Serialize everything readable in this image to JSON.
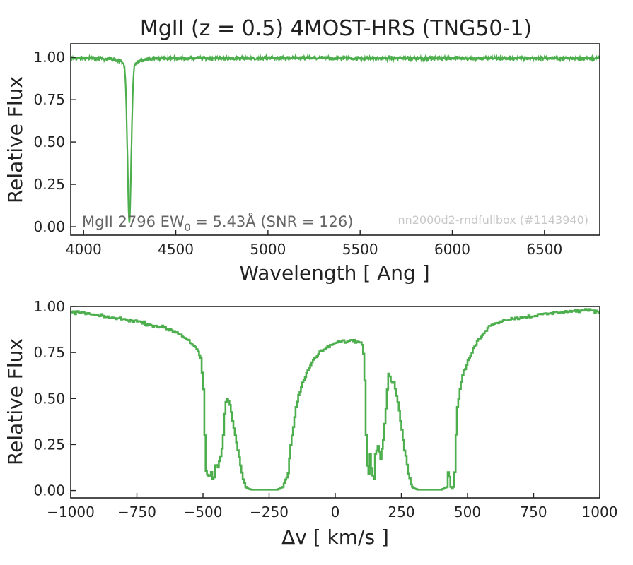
{
  "chart_data": [
    {
      "type": "line",
      "title": "MgII (z = 0.5) 4MOST-HRS (TNG50-1)",
      "xlabel": "Wavelength [ Ang ]",
      "ylabel": "Relative Flux",
      "xlim": [
        3930,
        6800
      ],
      "ylim": [
        -0.05,
        1.08
      ],
      "xticks": [
        4000,
        4500,
        5000,
        5500,
        6000,
        6500
      ],
      "xtick_labels": [
        "4000",
        "4500",
        "5000",
        "5500",
        "6000",
        "6500"
      ],
      "yticks": [
        0.0,
        0.25,
        0.5,
        0.75,
        1.0
      ],
      "ytick_labels": [
        "0.00",
        "0.25",
        "0.50",
        "0.75",
        "1.00"
      ],
      "color": "#4cae4c",
      "continuum": 0.995,
      "noise": 0.012,
      "absorption": {
        "center": 4248,
        "width_angstrom": 10,
        "min_flux": 0.02
      },
      "annotation": {
        "prefix": "MgII 2796 EW",
        "subscript": "0",
        "suffix": " = 5.43Å (SNR = 126)"
      },
      "note": "nn2000d2-rndfullbox (#1143940)"
    },
    {
      "type": "line",
      "xlabel": "Δv [ km/s ]",
      "ylabel": "Relative Flux",
      "xlim": [
        -1000,
        1000
      ],
      "ylim": [
        -0.04,
        1.0
      ],
      "xticks": [
        -1000,
        -750,
        -500,
        -250,
        0,
        250,
        500,
        750,
        1000
      ],
      "xtick_labels": [
        "−1000",
        "−750",
        "−500",
        "−250",
        "0",
        "250",
        "500",
        "750",
        "1000"
      ],
      "yticks": [
        0.0,
        0.25,
        0.5,
        0.75,
        1.0
      ],
      "ytick_labels": [
        "0.00",
        "0.25",
        "0.50",
        "0.75",
        "1.00"
      ],
      "color": "#4cae4c",
      "x": [
        -1000,
        -950,
        -900,
        -850,
        -800,
        -750,
        -700,
        -650,
        -600,
        -560,
        -530,
        -510,
        -500,
        -495,
        -490,
        -480,
        -470,
        -462,
        -455,
        -445,
        -440,
        -432,
        -425,
        -418,
        -410,
        -400,
        -390,
        -380,
        -370,
        -360,
        -350,
        -340,
        -330,
        -320,
        -300,
        -280,
        -260,
        -240,
        -220,
        -200,
        -180,
        -170,
        -160,
        -150,
        -140,
        -120,
        -100,
        -80,
        -60,
        -40,
        -20,
        0,
        20,
        40,
        60,
        80,
        100,
        105,
        110,
        115,
        120,
        125,
        130,
        135,
        140,
        145,
        150,
        160,
        170,
        180,
        190,
        200,
        205,
        210,
        220,
        230,
        240,
        250,
        260,
        270,
        280,
        290,
        300,
        310,
        320,
        340,
        360,
        380,
        400,
        420,
        425,
        430,
        435,
        440,
        445,
        450,
        455,
        460,
        470,
        480,
        500,
        520,
        540,
        560,
        580,
        600,
        650,
        700,
        750,
        800,
        850,
        900,
        950,
        1000
      ],
      "values": [
        0.97,
        0.965,
        0.95,
        0.94,
        0.93,
        0.92,
        0.9,
        0.885,
        0.86,
        0.82,
        0.78,
        0.72,
        0.55,
        0.3,
        0.1,
        0.07,
        0.1,
        0.04,
        0.14,
        0.13,
        0.16,
        0.2,
        0.3,
        0.46,
        0.5,
        0.47,
        0.38,
        0.3,
        0.22,
        0.14,
        0.06,
        0.02,
        0.01,
        0.005,
        0.005,
        0.005,
        0.005,
        0.005,
        0.005,
        0.02,
        0.1,
        0.25,
        0.35,
        0.45,
        0.52,
        0.6,
        0.67,
        0.72,
        0.75,
        0.77,
        0.79,
        0.8,
        0.81,
        0.81,
        0.815,
        0.81,
        0.8,
        0.75,
        0.6,
        0.3,
        0.13,
        0.09,
        0.2,
        0.13,
        0.08,
        0.07,
        0.2,
        0.25,
        0.18,
        0.28,
        0.45,
        0.64,
        0.62,
        0.6,
        0.58,
        0.52,
        0.44,
        0.33,
        0.22,
        0.14,
        0.06,
        0.02,
        0.01,
        0.005,
        0.005,
        0.005,
        0.005,
        0.005,
        0.005,
        0.02,
        0.1,
        0.08,
        0.02,
        0.01,
        0.02,
        0.1,
        0.3,
        0.45,
        0.55,
        0.63,
        0.7,
        0.77,
        0.82,
        0.86,
        0.89,
        0.91,
        0.93,
        0.94,
        0.95,
        0.96,
        0.97,
        0.975,
        0.98,
        0.97
      ]
    }
  ]
}
